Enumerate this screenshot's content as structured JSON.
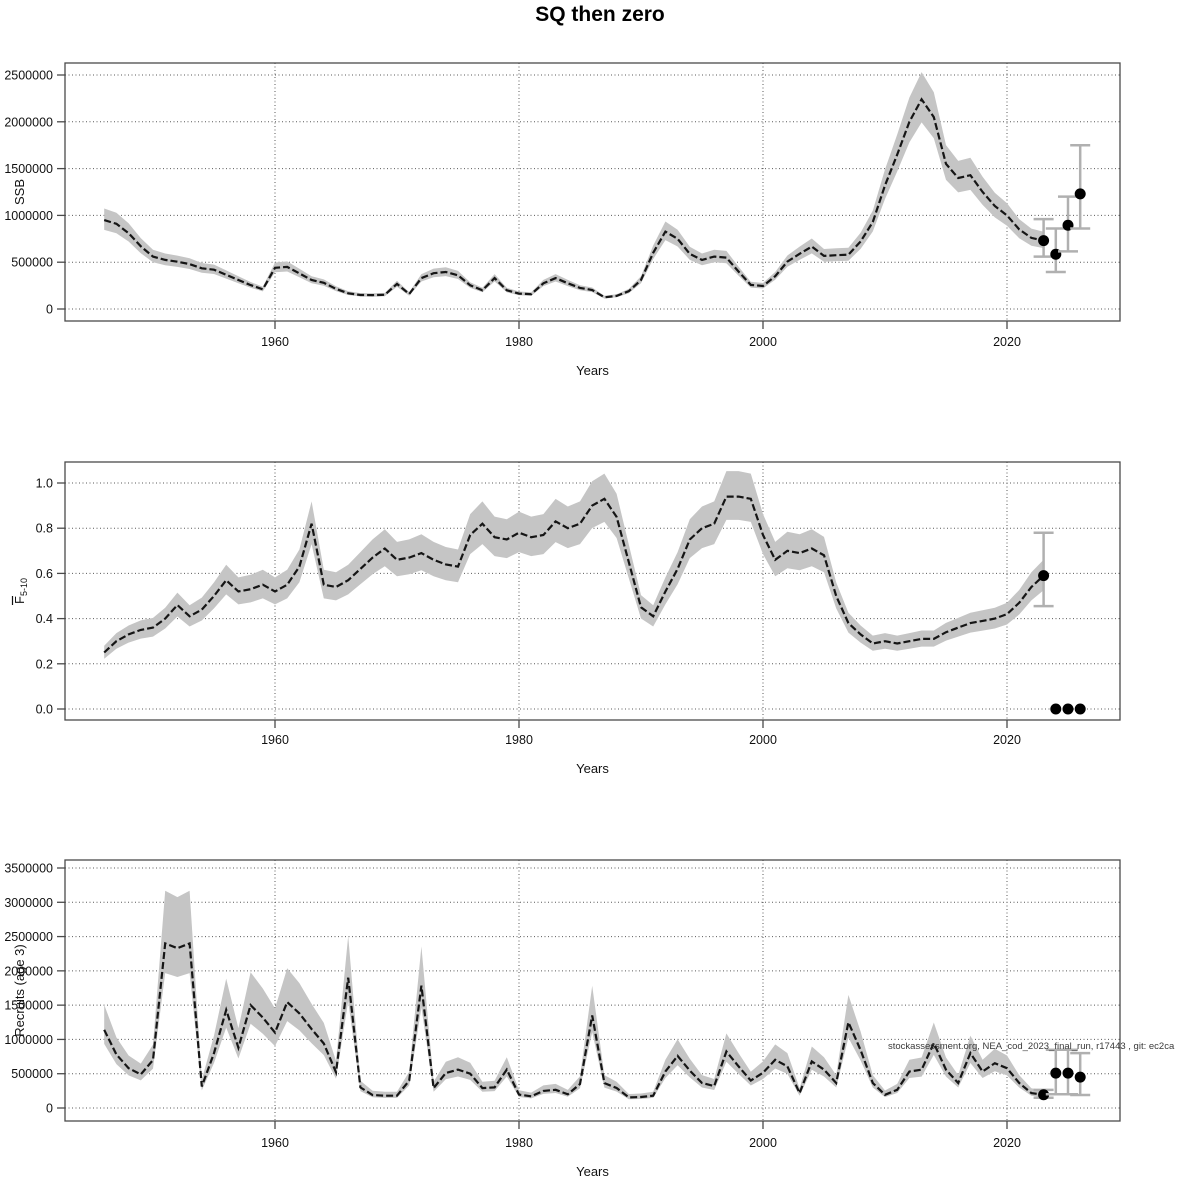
{
  "title": "SQ then zero",
  "watermark": "stockassessment.org, NEA_cod_2023_final_run, r17443 , git: ec2ca",
  "colors": {
    "line": "#151515",
    "band": "#c5c5c5",
    "grid": "#595959",
    "axis": "#4a4a4a",
    "tick_text": "#111111",
    "errorbar": "#b0b0b0",
    "point": "#000000"
  },
  "x_axis": {
    "label": "Years",
    "tick_values": [
      1960,
      1980,
      2000,
      2020
    ],
    "tick_labels": [
      "1960",
      "1980",
      "2000",
      "2020"
    ]
  },
  "chart_data": [
    {
      "type": "line",
      "name": "ssb",
      "ylabel": {
        "base": "SSB",
        "sub": "",
        "overline": false
      },
      "ylim": [
        0,
        2500000
      ],
      "ytick_values": [
        0,
        500000,
        1000000,
        1500000,
        2000000,
        2500000
      ],
      "ytick_labels": [
        "0",
        "500000",
        "1000000",
        "1500000",
        "2000000",
        "2500000"
      ],
      "years_start": 1946,
      "band": {
        "up": 0.13,
        "dn": 0.11
      },
      "values": [
        950000,
        910000,
        810000,
        670000,
        560000,
        525000,
        505000,
        480000,
        435000,
        420000,
        365000,
        310000,
        255000,
        211000,
        440000,
        450000,
        380000,
        310000,
        280000,
        215000,
        168000,
        150000,
        148000,
        152000,
        268000,
        160000,
        330000,
        382000,
        395000,
        360000,
        253000,
        200000,
        330000,
        200000,
        165000,
        158000,
        275000,
        330000,
        275000,
        225000,
        203000,
        125000,
        140000,
        190000,
        310000,
        600000,
        827000,
        750000,
        589000,
        525000,
        560000,
        549000,
        400000,
        257000,
        246000,
        350000,
        506000,
        590000,
        667000,
        567000,
        575000,
        580000,
        721000,
        930000,
        1320000,
        1650000,
        2000000,
        2240000,
        2050000,
        1550000,
        1400000,
        1430000,
        1250000,
        1100000,
        1000000,
        850000,
        760000,
        731000
      ],
      "points": {
        "years": [
          2023,
          2024,
          2025,
          2026
        ],
        "values": [
          731000,
          585000,
          895000,
          1230000
        ],
        "lo": [
          560000,
          395000,
          615000,
          860000
        ],
        "hi": [
          960000,
          860000,
          1200000,
          1750000
        ]
      }
    },
    {
      "type": "line",
      "name": "fbar",
      "ylabel": {
        "base": "F",
        "sub": "5-10",
        "overline": true
      },
      "ylim": [
        0,
        1.0
      ],
      "ytick_values": [
        0,
        0.2,
        0.4,
        0.6,
        0.8,
        1.0
      ],
      "ytick_labels": [
        "0.0",
        "0.2",
        "0.4",
        "0.6",
        "0.8",
        "1.0"
      ],
      "years_start": 1946,
      "band": {
        "up": 0.12,
        "dn": 0.11
      },
      "values": [
        0.25,
        0.3,
        0.33,
        0.35,
        0.36,
        0.4,
        0.46,
        0.41,
        0.44,
        0.5,
        0.57,
        0.52,
        0.53,
        0.55,
        0.52,
        0.55,
        0.63,
        0.82,
        0.55,
        0.54,
        0.57,
        0.62,
        0.67,
        0.71,
        0.66,
        0.67,
        0.69,
        0.66,
        0.64,
        0.63,
        0.77,
        0.82,
        0.76,
        0.75,
        0.78,
        0.76,
        0.77,
        0.83,
        0.8,
        0.82,
        0.9,
        0.93,
        0.85,
        0.65,
        0.45,
        0.41,
        0.52,
        0.62,
        0.75,
        0.8,
        0.82,
        0.94,
        0.94,
        0.93,
        0.77,
        0.66,
        0.7,
        0.69,
        0.71,
        0.68,
        0.5,
        0.38,
        0.33,
        0.29,
        0.3,
        0.29,
        0.3,
        0.31,
        0.31,
        0.34,
        0.36,
        0.38,
        0.39,
        0.4,
        0.42,
        0.47,
        0.54,
        0.59
      ],
      "points": {
        "years": [
          2023,
          2024,
          2025,
          2026
        ],
        "values": [
          0.59,
          0.0,
          0.0,
          0.0
        ],
        "lo": [
          0.455,
          0.0,
          0.0,
          0.0
        ],
        "hi": [
          0.78,
          0.0,
          0.0,
          0.0
        ]
      }
    },
    {
      "type": "line",
      "name": "recruits",
      "ylabel": {
        "base": "Recruits (age 3)",
        "sub": "",
        "overline": false
      },
      "ylim": [
        0,
        3500000
      ],
      "ytick_values": [
        0,
        500000,
        1000000,
        1500000,
        2000000,
        2500000,
        3000000,
        3500000
      ],
      "ytick_labels": [
        "0",
        "500000",
        "1000000",
        "1500000",
        "2000000",
        "2500000",
        "3000000",
        "3500000"
      ],
      "years_start": 1946,
      "band": {
        "up": 0.32,
        "dn": 0.18
      },
      "values": [
        1140000,
        780000,
        580000,
        490000,
        700000,
        2400000,
        2330000,
        2400000,
        313000,
        800000,
        1430000,
        880000,
        1500000,
        1320000,
        1100000,
        1545000,
        1380000,
        1150000,
        940000,
        520000,
        1900000,
        300000,
        190000,
        180000,
        180000,
        400000,
        1785000,
        290000,
        510000,
        560000,
        500000,
        290000,
        300000,
        560000,
        195000,
        170000,
        250000,
        266000,
        200000,
        350000,
        1350000,
        363000,
        291000,
        155000,
        160000,
        180000,
        533000,
        760000,
        545000,
        364000,
        320000,
        824000,
        606000,
        400000,
        515000,
        703000,
        606000,
        218000,
        680000,
        560000,
        364000,
        1250000,
        845000,
        364000,
        193000,
        266000,
        533000,
        558000,
        945000,
        558000,
        364000,
        800000,
        533000,
        654000,
        580000,
        364000,
        218000,
        193000
      ],
      "points": {
        "years": [
          2023,
          2024,
          2025,
          2026
        ],
        "values": [
          193000,
          509000,
          509000,
          450000
        ],
        "lo": [
          150000,
          200000,
          200000,
          190000
        ],
        "hi": [
          265000,
          850000,
          850000,
          800000
        ]
      }
    }
  ]
}
